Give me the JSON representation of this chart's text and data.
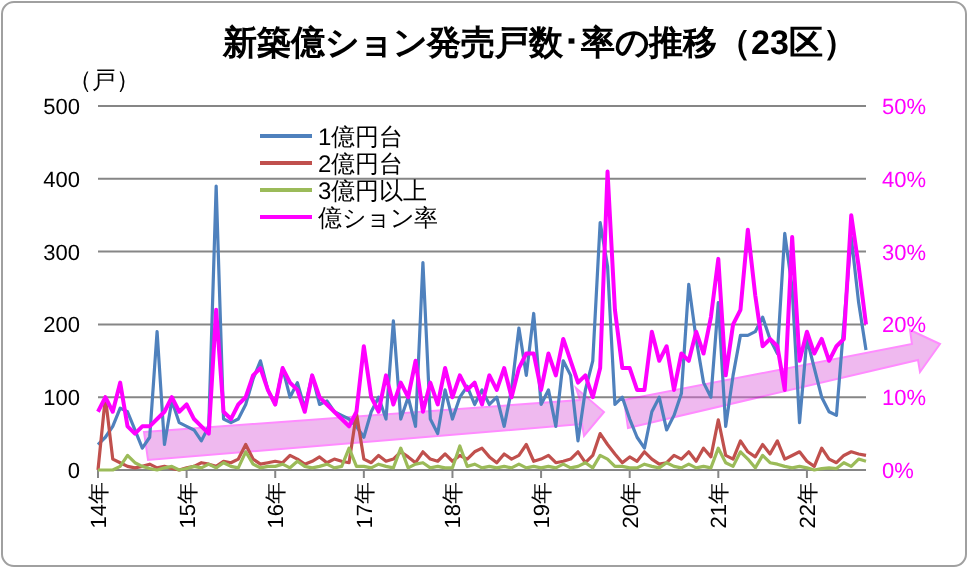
{
  "chart_data": {
    "type": "line",
    "title": "新築億ション発売戸数･率の推移（23区）",
    "ylabel": "（戸）",
    "categories": [
      "14年",
      null,
      null,
      null,
      null,
      null,
      null,
      null,
      null,
      null,
      null,
      null,
      "15年",
      null,
      null,
      null,
      null,
      null,
      null,
      null,
      null,
      null,
      null,
      null,
      "16年",
      null,
      null,
      null,
      null,
      null,
      null,
      null,
      null,
      null,
      null,
      null,
      "17年",
      null,
      null,
      null,
      null,
      null,
      null,
      null,
      null,
      null,
      null,
      null,
      "18年",
      null,
      null,
      null,
      null,
      null,
      null,
      null,
      null,
      null,
      null,
      null,
      "19年",
      null,
      null,
      null,
      null,
      null,
      null,
      null,
      null,
      null,
      null,
      null,
      "20年",
      null,
      null,
      null,
      null,
      null,
      null,
      null,
      null,
      null,
      null,
      null,
      "21年",
      null,
      null,
      null,
      null,
      null,
      null,
      null,
      null,
      null,
      null,
      null,
      "22年",
      null,
      null,
      null,
      null,
      null,
      null,
      null,
      null
    ],
    "series": [
      {
        "name": "1億円台",
        "color": "#4f81bd",
        "values": [
          35,
          45,
          60,
          85,
          80,
          55,
          30,
          45,
          190,
          35,
          95,
          65,
          60,
          55,
          40,
          60,
          390,
          70,
          65,
          70,
          90,
          125,
          150,
          110,
          90,
          140,
          100,
          120,
          85,
          130,
          90,
          95,
          80,
          75,
          70,
          60,
          45,
          80,
          100,
          70,
          205,
          70,
          100,
          60,
          285,
          70,
          50,
          110,
          70,
          100,
          115,
          90,
          110,
          90,
          100,
          60,
          110,
          195,
          130,
          215,
          90,
          110,
          60,
          150,
          130,
          40,
          110,
          150,
          340,
          280,
          90,
          100,
          70,
          45,
          30,
          80,
          100,
          55,
          75,
          105,
          255,
          180,
          120,
          100,
          230,
          60,
          130,
          185,
          185,
          190,
          210,
          180,
          160,
          325,
          250,
          65,
          180,
          140,
          100,
          80,
          75,
          200,
          320,
          230,
          165
        ]
      },
      {
        "name": "2億円台",
        "color": "#c0504d",
        "values": [
          0,
          100,
          15,
          10,
          5,
          3,
          5,
          8,
          3,
          5,
          2,
          0,
          3,
          5,
          10,
          8,
          5,
          12,
          10,
          15,
          35,
          15,
          8,
          10,
          12,
          10,
          20,
          15,
          8,
          12,
          18,
          10,
          15,
          12,
          10,
          78,
          15,
          10,
          20,
          12,
          15,
          25,
          18,
          10,
          25,
          15,
          12,
          22,
          12,
          20,
          15,
          25,
          30,
          18,
          10,
          22,
          15,
          20,
          35,
          12,
          15,
          20,
          10,
          12,
          15,
          25,
          10,
          20,
          50,
          35,
          22,
          10,
          18,
          12,
          25,
          15,
          8,
          10,
          20,
          15,
          25,
          12,
          30,
          18,
          69,
          20,
          15,
          40,
          25,
          18,
          35,
          22,
          40,
          15,
          20,
          25,
          12,
          5,
          30,
          15,
          10,
          20,
          25,
          22,
          20
        ]
      },
      {
        "name": "3億円以上",
        "color": "#9bbb59",
        "values": [
          0,
          0,
          0,
          5,
          20,
          10,
          5,
          2,
          0,
          3,
          5,
          0,
          2,
          5,
          3,
          8,
          3,
          10,
          5,
          3,
          25,
          8,
          3,
          5,
          5,
          8,
          3,
          12,
          5,
          3,
          5,
          8,
          3,
          5,
          30,
          5,
          5,
          3,
          8,
          5,
          3,
          30,
          3,
          8,
          10,
          3,
          5,
          3,
          3,
          33,
          5,
          8,
          3,
          5,
          3,
          5,
          3,
          8,
          3,
          5,
          3,
          5,
          3,
          8,
          3,
          5,
          10,
          3,
          20,
          15,
          5,
          5,
          3,
          3,
          8,
          5,
          3,
          10,
          5,
          3,
          8,
          3,
          5,
          3,
          30,
          10,
          5,
          25,
          15,
          3,
          20,
          10,
          8,
          5,
          3,
          5,
          3,
          0,
          2,
          3,
          2,
          10,
          5,
          15,
          12
        ]
      },
      {
        "name": "億ション率",
        "color": "#ff00ff",
        "axis": "y2",
        "values": [
          8,
          10,
          8,
          12,
          6,
          5,
          6,
          6,
          7,
          8,
          10,
          8,
          9,
          7,
          6,
          5,
          22,
          8,
          7,
          9,
          10,
          13,
          14,
          11,
          9,
          14,
          12,
          11,
          8,
          13,
          10,
          9,
          8,
          7,
          6,
          8,
          17,
          10,
          8,
          13,
          9,
          12,
          10,
          15,
          8,
          12,
          9,
          14,
          10,
          13,
          11,
          12,
          9,
          13,
          11,
          14,
          10,
          14,
          16,
          16,
          11,
          16,
          13,
          18,
          15,
          12,
          13,
          10,
          14,
          41,
          22,
          14,
          14,
          11,
          11,
          19,
          15,
          17,
          11,
          16,
          15,
          19,
          16,
          21,
          29,
          13,
          20,
          22,
          33,
          24,
          17,
          18,
          17,
          11,
          32,
          15,
          19,
          16,
          18,
          15,
          17,
          18,
          35,
          28,
          20
        ]
      }
    ],
    "ylim": [
      0,
      500
    ],
    "yticks": [
      0,
      100,
      200,
      300,
      400,
      500
    ],
    "y2lim": [
      0,
      50
    ],
    "y2ticks": [
      {
        "value": 0,
        "label": "0%"
      },
      {
        "value": 10,
        "label": "10%"
      },
      {
        "value": 20,
        "label": "20%"
      },
      {
        "value": 30,
        "label": "30%"
      },
      {
        "value": 40,
        "label": "40%"
      },
      {
        "value": 50,
        "label": "50%"
      }
    ],
    "grid": "y",
    "legend": "top"
  }
}
